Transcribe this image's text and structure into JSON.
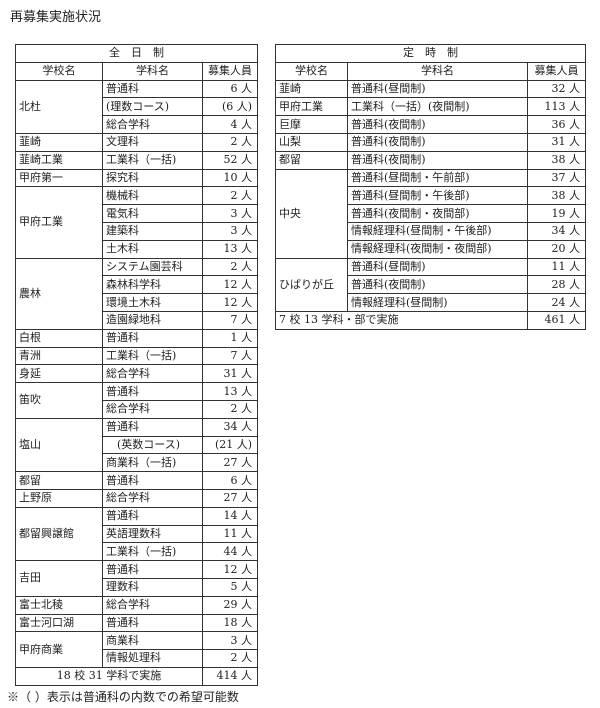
{
  "title": "再募集実施状況",
  "note": "※（ ）表示は普通科の内数での希望可能数",
  "full_time": {
    "heading": "全　日　制",
    "columns": [
      "学校名",
      "学科名",
      "募集人員"
    ],
    "schools": [
      {
        "name": "北杜",
        "rows": [
          [
            "普通科",
            "6 人"
          ],
          [
            "(理数コース)",
            "(6 人)"
          ],
          [
            "総合学科",
            "4 人"
          ]
        ]
      },
      {
        "name": "韮崎",
        "rows": [
          [
            "文理科",
            "2 人"
          ]
        ]
      },
      {
        "name": "韮崎工業",
        "rows": [
          [
            "工業科（一括)",
            "52 人"
          ]
        ]
      },
      {
        "name": "甲府第一",
        "rows": [
          [
            "探究科",
            "10 人"
          ]
        ]
      },
      {
        "name": "甲府工業",
        "rows": [
          [
            "機械科",
            "2 人"
          ],
          [
            "電気科",
            "3 人"
          ],
          [
            "建築科",
            "3 人"
          ],
          [
            "土木科",
            "13 人"
          ]
        ]
      },
      {
        "name": "農林",
        "rows": [
          [
            "システム園芸科",
            "2 人"
          ],
          [
            "森林科学科",
            "12 人"
          ],
          [
            "環境土木科",
            "12 人"
          ],
          [
            "造園緑地科",
            "7 人"
          ]
        ]
      },
      {
        "name": "白根",
        "rows": [
          [
            "普通科",
            "1 人"
          ]
        ]
      },
      {
        "name": "青洲",
        "rows": [
          [
            "工業科（一括)",
            "7 人"
          ]
        ]
      },
      {
        "name": "身延",
        "rows": [
          [
            "総合学科",
            "31 人"
          ]
        ]
      },
      {
        "name": "笛吹",
        "rows": [
          [
            "普通科",
            "13 人"
          ],
          [
            "総合学科",
            "2 人"
          ]
        ]
      },
      {
        "name": "塩山",
        "rows": [
          [
            "普通科",
            "34 人"
          ],
          [
            "　(英数コース)",
            "(21 人)"
          ],
          [
            "商業科（一括)",
            "27 人"
          ]
        ]
      },
      {
        "name": "都留",
        "rows": [
          [
            "普通科",
            "6 人"
          ]
        ]
      },
      {
        "name": "上野原",
        "rows": [
          [
            "総合学科",
            "27 人"
          ]
        ]
      },
      {
        "name": "都留興譲館",
        "rows": [
          [
            "普通科",
            "14 人"
          ],
          [
            "英語理数科",
            "11 人"
          ],
          [
            "工業科（一括)",
            "44 人"
          ]
        ]
      },
      {
        "name": "吉田",
        "rows": [
          [
            "普通科",
            "12 人"
          ],
          [
            "理数科",
            "5 人"
          ]
        ]
      },
      {
        "name": "富士北稜",
        "rows": [
          [
            "総合学科",
            "29 人"
          ]
        ]
      },
      {
        "name": "富士河口湖",
        "rows": [
          [
            "普通科",
            "18 人"
          ]
        ]
      },
      {
        "name": "甲府商業",
        "rows": [
          [
            "商業科",
            "3 人"
          ],
          [
            "情報処理科",
            "2 人"
          ]
        ]
      }
    ],
    "total_label": "18 校 31 学科で実施",
    "total": "414 人"
  },
  "part_time": {
    "heading": "定　時　制",
    "columns": [
      "学校名",
      "学科名",
      "募集人員"
    ],
    "schools": [
      {
        "name": "韮崎",
        "rows": [
          [
            "普通科(昼間制)",
            "32 人"
          ]
        ]
      },
      {
        "name": "甲府工業",
        "rows": [
          [
            "工業科（一括）(夜間制)",
            "113 人"
          ]
        ]
      },
      {
        "name": "巨摩",
        "rows": [
          [
            "普通科(夜間制)",
            "36 人"
          ]
        ]
      },
      {
        "name": "山梨",
        "rows": [
          [
            "普通科(夜間制)",
            "31 人"
          ]
        ]
      },
      {
        "name": "都留",
        "rows": [
          [
            "普通科(夜間制)",
            "38 人"
          ]
        ]
      },
      {
        "name": "中央",
        "rows": [
          [
            "普通科(昼間制・午前部)",
            "37 人"
          ],
          [
            "普通科(昼間制・午後部)",
            "38 人"
          ],
          [
            "普通科(夜間制・夜間部)",
            "19 人"
          ],
          [
            "情報経理科(昼間制・午後部)",
            "34 人"
          ],
          [
            "情報経理科(夜間制・夜間部)",
            "20 人"
          ]
        ]
      },
      {
        "name": "ひばりが丘",
        "rows": [
          [
            "普通科(昼間制)",
            "11 人"
          ],
          [
            "普通科(夜間制)",
            "28 人"
          ],
          [
            "情報経理科(昼間制)",
            "24 人"
          ]
        ]
      }
    ],
    "total_label": "7 校 13 学科・部で実施",
    "total": "461 人"
  }
}
